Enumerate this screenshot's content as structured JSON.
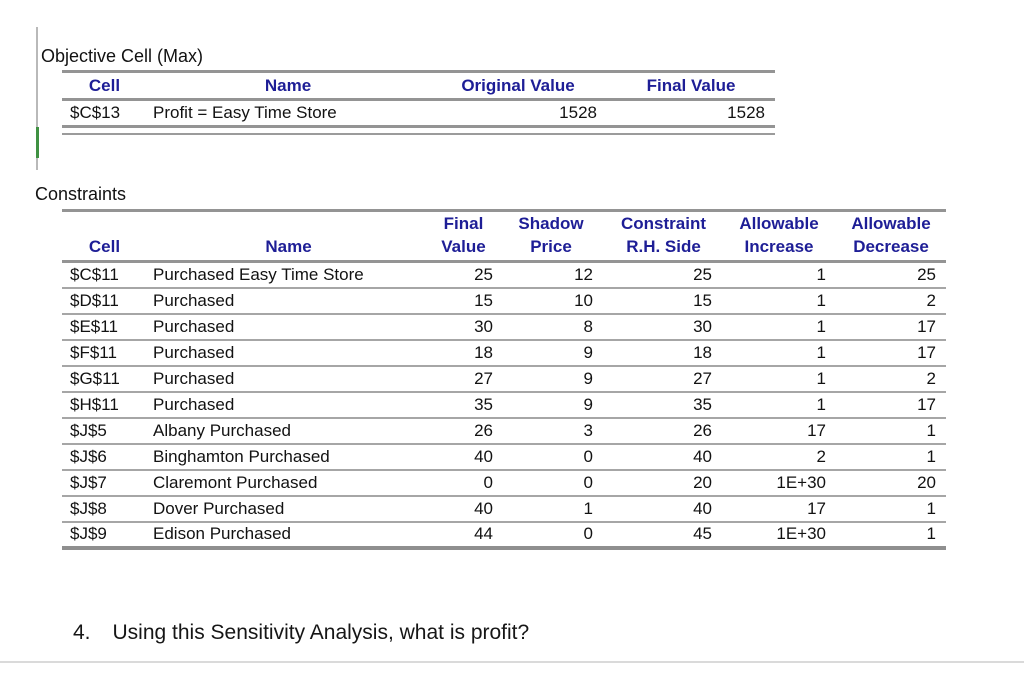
{
  "colors": {
    "header_text": "#1e1e96",
    "table_border": "#949494",
    "row_divider": "#a6a6a6",
    "margin_line": "#b9b9b9",
    "margin_mark_green": "#3f9142"
  },
  "objective_table": {
    "title": "Objective Cell (Max)",
    "headers": [
      "Cell",
      "Name",
      "Original Value",
      "Final Value"
    ],
    "rows": [
      {
        "cell": "$C$13",
        "name": "Profit = Easy Time Store",
        "original_value": "1528",
        "final_value": "1528"
      }
    ]
  },
  "constraints_table": {
    "title": "Constraints",
    "header_line1": [
      "",
      "",
      "Final",
      "Shadow",
      "Constraint",
      "Allowable",
      "Allowable"
    ],
    "header_line2": [
      "Cell",
      "Name",
      "Value",
      "Price",
      "R.H. Side",
      "Increase",
      "Decrease"
    ],
    "rows": [
      {
        "cell": "$C$11",
        "name": "Purchased Easy Time Store",
        "final_value": "25",
        "shadow_price": "12",
        "constraint_rhs": "25",
        "allowable_increase": "1",
        "allowable_decrease": "25"
      },
      {
        "cell": "$D$11",
        "name": "Purchased",
        "final_value": "15",
        "shadow_price": "10",
        "constraint_rhs": "15",
        "allowable_increase": "1",
        "allowable_decrease": "2"
      },
      {
        "cell": "$E$11",
        "name": "Purchased",
        "final_value": "30",
        "shadow_price": "8",
        "constraint_rhs": "30",
        "allowable_increase": "1",
        "allowable_decrease": "17"
      },
      {
        "cell": "$F$11",
        "name": "Purchased",
        "final_value": "18",
        "shadow_price": "9",
        "constraint_rhs": "18",
        "allowable_increase": "1",
        "allowable_decrease": "17"
      },
      {
        "cell": "$G$11",
        "name": "Purchased",
        "final_value": "27",
        "shadow_price": "9",
        "constraint_rhs": "27",
        "allowable_increase": "1",
        "allowable_decrease": "2"
      },
      {
        "cell": "$H$11",
        "name": "Purchased",
        "final_value": "35",
        "shadow_price": "9",
        "constraint_rhs": "35",
        "allowable_increase": "1",
        "allowable_decrease": "17"
      },
      {
        "cell": "$J$5",
        "name": "Albany Purchased",
        "final_value": "26",
        "shadow_price": "3",
        "constraint_rhs": "26",
        "allowable_increase": "17",
        "allowable_decrease": "1"
      },
      {
        "cell": "$J$6",
        "name": "Binghamton Purchased",
        "final_value": "40",
        "shadow_price": "0",
        "constraint_rhs": "40",
        "allowable_increase": "2",
        "allowable_decrease": "1"
      },
      {
        "cell": "$J$7",
        "name": "Claremont Purchased",
        "final_value": "0",
        "shadow_price": "0",
        "constraint_rhs": "20",
        "allowable_increase": "1E+30",
        "allowable_decrease": "20"
      },
      {
        "cell": "$J$8",
        "name": "Dover Purchased",
        "final_value": "40",
        "shadow_price": "1",
        "constraint_rhs": "40",
        "allowable_increase": "17",
        "allowable_decrease": "1"
      },
      {
        "cell": "$J$9",
        "name": "Edison Purchased",
        "final_value": "44",
        "shadow_price": "0",
        "constraint_rhs": "45",
        "allowable_increase": "1E+30",
        "allowable_decrease": "1"
      }
    ]
  },
  "question": {
    "number": "4.",
    "text": "Using this Sensitivity Analysis, what is profit?"
  }
}
